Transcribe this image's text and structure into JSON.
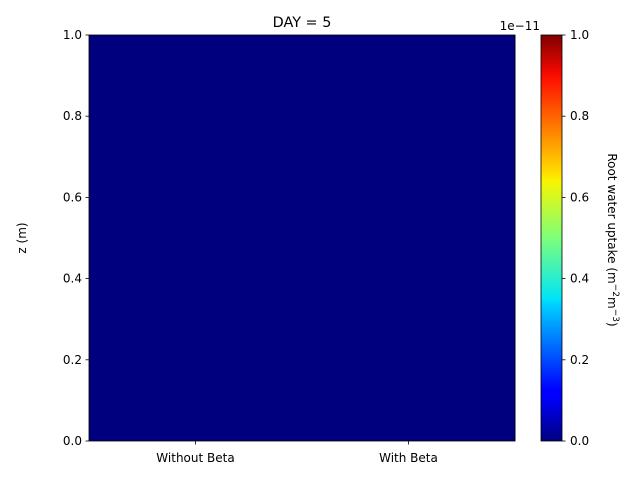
{
  "chart_data": {
    "type": "heatmap",
    "title": "DAY = 5",
    "xlabel": "",
    "ylabel": "z (m)",
    "categories": [
      "Without Beta",
      "With Beta"
    ],
    "ylim": [
      0,
      1.0
    ],
    "y_ticks": [
      "0.0",
      "0.2",
      "0.4",
      "0.6",
      "0.8",
      "1.0"
    ],
    "values": [
      [
        0,
        0
      ]
    ],
    "fill_color": "#00007f",
    "colorbar": {
      "label": "Root water uptake (m$^{-2}$m$^{-3}$)",
      "label_base": "Root water uptake (m",
      "label_sup1": "−2",
      "label_mid": "m",
      "label_sup2": "−3",
      "label_end": ")",
      "range": [
        0,
        1.0
      ],
      "ticks": [
        "0.0",
        "0.2",
        "0.4",
        "0.6",
        "0.8",
        "1.0"
      ],
      "offset_text": "1e−11",
      "colormap": "jet"
    }
  }
}
